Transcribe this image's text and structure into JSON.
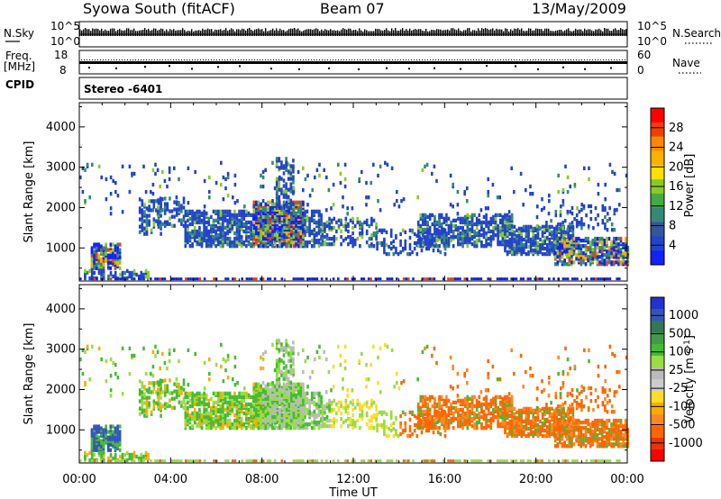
{
  "header": {
    "station": "Syowa South (fitACF)",
    "beam": "Beam 07",
    "date": "13/May/2009"
  },
  "strips": {
    "nsky": {
      "label": "N.Sky",
      "top_tick": "10^5",
      "bottom_tick": "10^0",
      "right_label": "N.Search",
      "right_top_tick": "10^5",
      "right_bottom_tick": "10^0"
    },
    "freq": {
      "label_line1": "Freq.",
      "label_line2": "[MHz]",
      "top_tick": "18",
      "bottom_tick": "8",
      "right_label": "Nave",
      "right_top_tick": "60",
      "right_bottom_tick": "0"
    },
    "cpid": {
      "label": "CPID",
      "value": "Stereo -6401"
    }
  },
  "colorbars": {
    "power": {
      "label": "Power [dB]",
      "ticks": [
        "28",
        "24",
        "20",
        "16",
        "12",
        "8",
        "4"
      ],
      "colors": [
        "#ff0000",
        "#f04000",
        "#ff8800",
        "#ffb000",
        "#ffe000",
        "#88cc22",
        "#44aa44",
        "#338877",
        "#335599",
        "#2244cc",
        "#1122ff"
      ]
    },
    "velocity": {
      "label": "Velocity [m s",
      "label_sup": "-1",
      "label_end": "]",
      "ticks": [
        "1000",
        "500",
        "100",
        "25",
        "-25",
        "-100",
        "-500",
        "-1000"
      ],
      "colors": [
        "#2233cc",
        "#3355bb",
        "#337755",
        "#449944",
        "#44bb33",
        "#99dd44",
        "#bbbbbb",
        "#cccccc",
        "#ffdd22",
        "#ffaa00",
        "#ff8822",
        "#ff6600",
        "#ee3300",
        "#ff0000"
      ]
    }
  },
  "chart_data": [
    {
      "type": "heatmap",
      "name": "power",
      "ylabel": "Slant Range [km]",
      "y_ticks": [
        1000,
        2000,
        3000,
        4000
      ],
      "ylim": [
        180,
        4600
      ],
      "xlim_hours": [
        0,
        24
      ],
      "x_ticks": [
        "00:00",
        "04:00",
        "08:00",
        "12:00",
        "16:00",
        "20:00",
        "00:00"
      ],
      "xlabel": "Time UT",
      "colorbar_range_dB": [
        0,
        30
      ]
    },
    {
      "type": "heatmap",
      "name": "velocity",
      "ylabel": "Slant Range [km]",
      "y_ticks": [
        1000,
        2000,
        3000,
        4000
      ],
      "ylim": [
        180,
        4600
      ],
      "xlim_hours": [
        0,
        24
      ],
      "x_ticks": [
        "00:00",
        "04:00",
        "08:00",
        "12:00",
        "16:00",
        "20:00",
        "00:00"
      ],
      "xlabel": "Time UT",
      "colorbar_range_ms": [
        -1000,
        1000
      ]
    }
  ]
}
